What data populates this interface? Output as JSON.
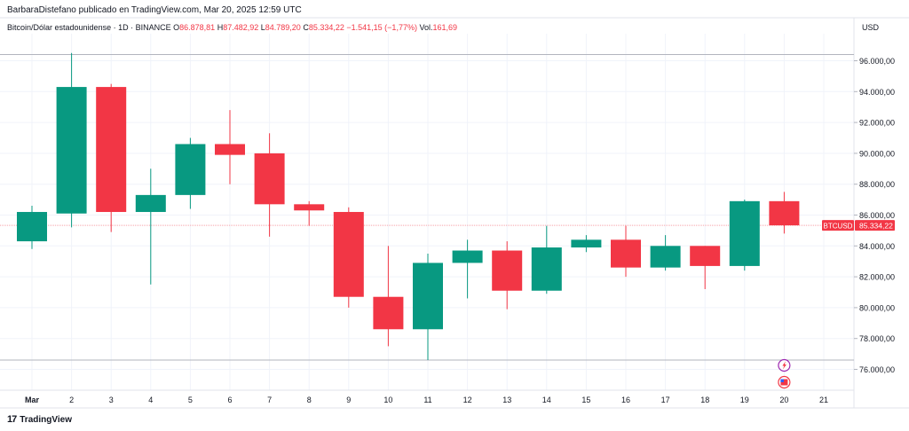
{
  "header": {
    "author_line": "BarbaraDistefano publicado en TradingView.com, Mar 20, 2025 12:59 UTC"
  },
  "legend": {
    "symbol_title": "Bitcoin/Dólar estadounidense · 1D · BINANCE",
    "o_label": "O",
    "o_value": "86.878,81",
    "h_label": "H",
    "h_value": "87.482,92",
    "l_label": "L",
    "l_value": "84.789,20",
    "c_label": "C",
    "c_value": "85.334,22",
    "change": "−1.541,15 (−1,77%)",
    "vol_label": "Vol.",
    "vol_value": "161,69"
  },
  "price_scale": {
    "currency": "USD",
    "ticks": [
      "96.000,00",
      "94.000,00",
      "92.000,00",
      "90.000,00",
      "88.000,00",
      "86.000,00",
      "84.000,00",
      "82.000,00",
      "80.000,00",
      "78.000,00",
      "76.000,00"
    ]
  },
  "last_price_tag": {
    "symbol": "BTCUSD",
    "price": "85.334,22"
  },
  "footer": {
    "brand": "TradingView"
  },
  "colors": {
    "up": "#089981",
    "down": "#f23645",
    "grid": "#f0f3fa",
    "text": "#131722"
  },
  "chart_data": {
    "type": "candlestick",
    "x_labels": [
      "Mar",
      "2",
      "3",
      "4",
      "5",
      "6",
      "7",
      "8",
      "9",
      "10",
      "11",
      "12",
      "13",
      "14",
      "15",
      "16",
      "17",
      "18",
      "19",
      "20",
      "21"
    ],
    "ylim": [
      74800,
      97000
    ],
    "candles": [
      {
        "x": "Mar",
        "open": 84300,
        "high": 86600,
        "low": 83800,
        "close": 86200
      },
      {
        "x": "2",
        "open": 86100,
        "high": 96500,
        "low": 85200,
        "close": 94300
      },
      {
        "x": "3",
        "open": 94300,
        "high": 94500,
        "low": 84900,
        "close": 86200
      },
      {
        "x": "4",
        "open": 86200,
        "high": 89000,
        "low": 81500,
        "close": 87300
      },
      {
        "x": "5",
        "open": 87300,
        "high": 91000,
        "low": 86400,
        "close": 90600
      },
      {
        "x": "6",
        "open": 90600,
        "high": 92800,
        "low": 88000,
        "close": 89900
      },
      {
        "x": "7",
        "open": 90000,
        "high": 91300,
        "low": 84600,
        "close": 86700
      },
      {
        "x": "8",
        "open": 86700,
        "high": 86900,
        "low": 85300,
        "close": 86300
      },
      {
        "x": "9",
        "open": 86200,
        "high": 86500,
        "low": 80000,
        "close": 80700
      },
      {
        "x": "10",
        "open": 80700,
        "high": 84000,
        "low": 77500,
        "close": 78600
      },
      {
        "x": "11",
        "open": 78600,
        "high": 83500,
        "low": 76600,
        "close": 82900
      },
      {
        "x": "12",
        "open": 82900,
        "high": 84400,
        "low": 80600,
        "close": 83700
      },
      {
        "x": "13",
        "open": 83700,
        "high": 84300,
        "low": 79900,
        "close": 81100
      },
      {
        "x": "14",
        "open": 81100,
        "high": 85300,
        "low": 80900,
        "close": 83900
      },
      {
        "x": "15",
        "open": 83900,
        "high": 84700,
        "low": 83600,
        "close": 84400
      },
      {
        "x": "16",
        "open": 84400,
        "high": 85300,
        "low": 82000,
        "close": 82600
      },
      {
        "x": "17",
        "open": 82600,
        "high": 84700,
        "low": 82400,
        "close": 84000
      },
      {
        "x": "18",
        "open": 84000,
        "high": 84000,
        "low": 81200,
        "close": 82700
      },
      {
        "x": "19",
        "open": 82700,
        "high": 87000,
        "low": 82400,
        "close": 86900
      },
      {
        "x": "20",
        "open": 86900,
        "high": 87500,
        "low": 84800,
        "close": 85334.22
      }
    ],
    "high_line": 96400,
    "low_line": 76600,
    "last_price": 85334.22,
    "grid": true
  }
}
